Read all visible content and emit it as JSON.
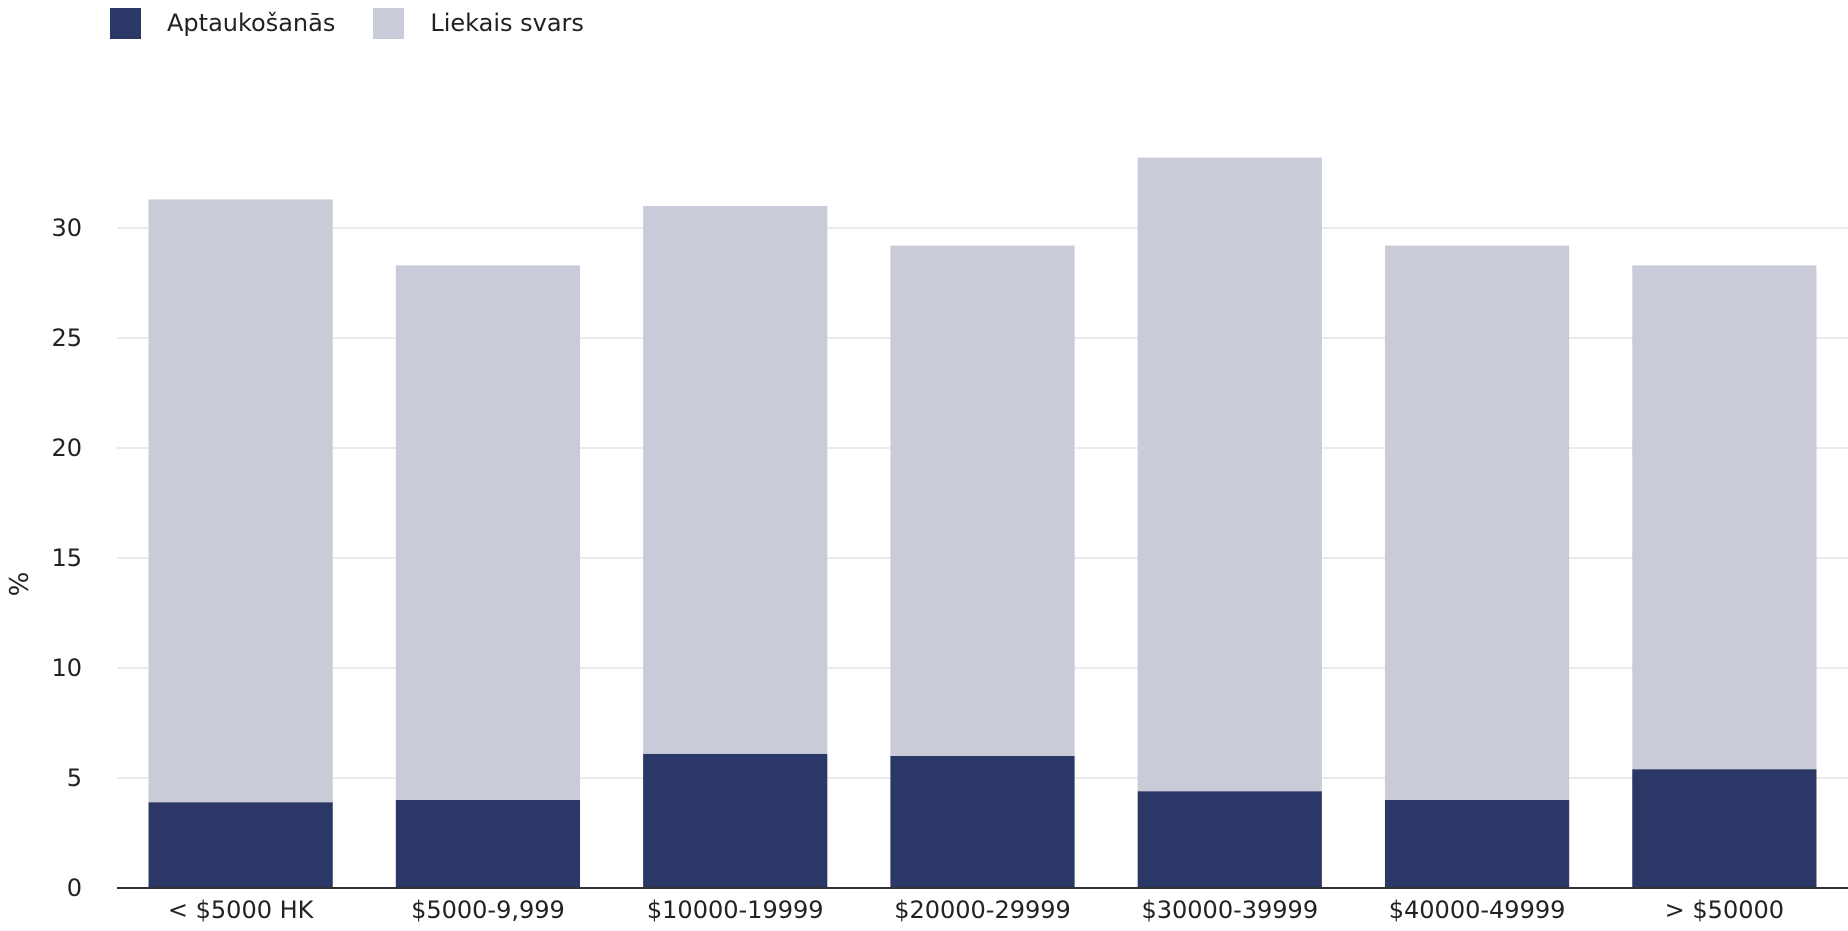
{
  "chart_data": {
    "type": "bar",
    "stacked": true,
    "categories": [
      "< $5000 HK",
      "$5000-9,999",
      "$10000-19999",
      "$20000-29999",
      "$30000-39999",
      "$40000-49999",
      "> $50000"
    ],
    "series": [
      {
        "name": "Aptaukošanās",
        "color": "#2b3766",
        "values": [
          3.9,
          4.0,
          6.1,
          6.0,
          4.4,
          4.0,
          5.4
        ]
      },
      {
        "name": "Liekais svars",
        "color": "#c9cbd8",
        "values": [
          27.4,
          24.3,
          24.9,
          23.2,
          28.8,
          25.2,
          22.9
        ]
      }
    ],
    "xlabel": "",
    "ylabel": "%",
    "ylim": [
      0,
      34
    ],
    "yticks": [
      0,
      5,
      10,
      15,
      20,
      25,
      30
    ],
    "grid": true,
    "legend_position": "top-left"
  }
}
